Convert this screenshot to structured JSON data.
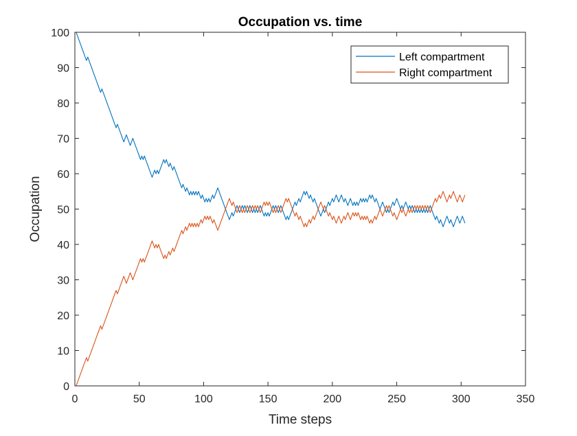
{
  "chart_data": {
    "type": "line",
    "title": "Occupation vs. time",
    "xlabel": "Time steps",
    "ylabel": "Occupation",
    "xlim": [
      0,
      350
    ],
    "ylim": [
      0,
      100
    ],
    "xticks": [
      0,
      50,
      100,
      150,
      200,
      250,
      300,
      350
    ],
    "yticks": [
      0,
      10,
      20,
      30,
      40,
      50,
      60,
      70,
      80,
      90,
      100
    ],
    "grid": false,
    "legend_position": "top-right",
    "x": {
      "start": 1,
      "end": 301
    },
    "series": [
      {
        "name": "Left compartment",
        "color": "#0072BD",
        "values": [
          100,
          99,
          98,
          97,
          96,
          95,
          94,
          93,
          92,
          93,
          92,
          91,
          90,
          89,
          88,
          87,
          86,
          85,
          84,
          83,
          84,
          83,
          82,
          81,
          80,
          79,
          78,
          77,
          76,
          75,
          74,
          73,
          74,
          73,
          72,
          71,
          70,
          69,
          70,
          71,
          70,
          69,
          68,
          69,
          70,
          69,
          68,
          67,
          66,
          65,
          64,
          65,
          64,
          65,
          64,
          63,
          62,
          61,
          60,
          59,
          60,
          61,
          60,
          61,
          60,
          61,
          62,
          63,
          64,
          63,
          64,
          63,
          62,
          63,
          62,
          61,
          62,
          61,
          60,
          59,
          58,
          57,
          56,
          57,
          56,
          55,
          56,
          55,
          54,
          55,
          54,
          55,
          54,
          55,
          54,
          55,
          54,
          53,
          54,
          53,
          52,
          53,
          52,
          53,
          52,
          53,
          54,
          53,
          54,
          55,
          56,
          55,
          54,
          53,
          52,
          51,
          50,
          49,
          48,
          47,
          48,
          49,
          48,
          49,
          50,
          51,
          50,
          49,
          50,
          51,
          50,
          51,
          50,
          49,
          50,
          51,
          50,
          49,
          50,
          49,
          50,
          49,
          50,
          51,
          50,
          49,
          48,
          49,
          48,
          49,
          48,
          49,
          50,
          51,
          50,
          51,
          50,
          49,
          50,
          51,
          50,
          49,
          48,
          47,
          48,
          47,
          48,
          49,
          50,
          51,
          52,
          51,
          52,
          53,
          52,
          53,
          54,
          55,
          54,
          55,
          54,
          53,
          54,
          53,
          52,
          53,
          52,
          51,
          50,
          49,
          48,
          49,
          50,
          49,
          50,
          51,
          52,
          51,
          52,
          53,
          52,
          53,
          54,
          53,
          52,
          53,
          54,
          53,
          52,
          53,
          52,
          51,
          52,
          53,
          52,
          51,
          52,
          51,
          52,
          51,
          52,
          53,
          52,
          53,
          52,
          53,
          52,
          53,
          54,
          53,
          54,
          53,
          52,
          53,
          52,
          51,
          50,
          51,
          52,
          51,
          50,
          49,
          50,
          49,
          50,
          51,
          52,
          51,
          52,
          53,
          52,
          51,
          50,
          51,
          50,
          51,
          52,
          51,
          50,
          51,
          50,
          51,
          50,
          49,
          50,
          49,
          50,
          49,
          50,
          49,
          50,
          49,
          50,
          49,
          50,
          51,
          50,
          49,
          48,
          47,
          48,
          47,
          46,
          47,
          46,
          45,
          46,
          47,
          48,
          47,
          46,
          47,
          46,
          45,
          46,
          47,
          48,
          47,
          46,
          47,
          48,
          47,
          46
        ]
      },
      {
        "name": "Right compartment",
        "color": "#D95319",
        "values": [
          0,
          1,
          2,
          3,
          4,
          5,
          6,
          7,
          8,
          7,
          8,
          9,
          10,
          11,
          12,
          13,
          14,
          15,
          16,
          17,
          16,
          17,
          18,
          19,
          20,
          21,
          22,
          23,
          24,
          25,
          26,
          27,
          26,
          27,
          28,
          29,
          30,
          31,
          30,
          29,
          30,
          31,
          32,
          31,
          30,
          31,
          32,
          33,
          34,
          35,
          36,
          35,
          36,
          35,
          36,
          37,
          38,
          39,
          40,
          41,
          40,
          39,
          40,
          39,
          40,
          39,
          38,
          37,
          36,
          37,
          36,
          37,
          38,
          37,
          38,
          39,
          38,
          39,
          40,
          41,
          42,
          43,
          44,
          43,
          44,
          45,
          44,
          45,
          46,
          45,
          46,
          45,
          46,
          45,
          46,
          45,
          46,
          47,
          46,
          47,
          48,
          47,
          48,
          47,
          48,
          47,
          46,
          47,
          46,
          45,
          44,
          45,
          46,
          47,
          48,
          49,
          50,
          51,
          52,
          53,
          52,
          51,
          52,
          51,
          50,
          49,
          50,
          51,
          50,
          49,
          50,
          49,
          50,
          51,
          50,
          49,
          50,
          51,
          50,
          51,
          50,
          51,
          50,
          49,
          50,
          51,
          52,
          51,
          52,
          51,
          52,
          51,
          50,
          49,
          50,
          49,
          50,
          51,
          50,
          49,
          50,
          51,
          52,
          53,
          52,
          53,
          52,
          51,
          50,
          49,
          48,
          49,
          48,
          47,
          48,
          47,
          46,
          45,
          46,
          45,
          46,
          47,
          46,
          47,
          48,
          47,
          48,
          49,
          50,
          51,
          52,
          51,
          50,
          51,
          50,
          49,
          48,
          49,
          48,
          47,
          48,
          47,
          46,
          47,
          48,
          47,
          46,
          47,
          48,
          47,
          48,
          49,
          48,
          47,
          48,
          49,
          48,
          49,
          48,
          49,
          48,
          47,
          48,
          47,
          48,
          47,
          48,
          47,
          46,
          47,
          46,
          47,
          48,
          47,
          48,
          49,
          50,
          49,
          48,
          49,
          50,
          51,
          50,
          51,
          50,
          49,
          48,
          49,
          48,
          47,
          48,
          49,
          50,
          49,
          50,
          49,
          48,
          49,
          50,
          49,
          50,
          49,
          50,
          51,
          50,
          51,
          50,
          51,
          50,
          51,
          50,
          51,
          50,
          51,
          50,
          49,
          50,
          51,
          52,
          53,
          52,
          53,
          54,
          53,
          54,
          55,
          54,
          53,
          52,
          53,
          54,
          53,
          54,
          55,
          54,
          53,
          52,
          53,
          54,
          53,
          52,
          53,
          54
        ]
      }
    ]
  }
}
